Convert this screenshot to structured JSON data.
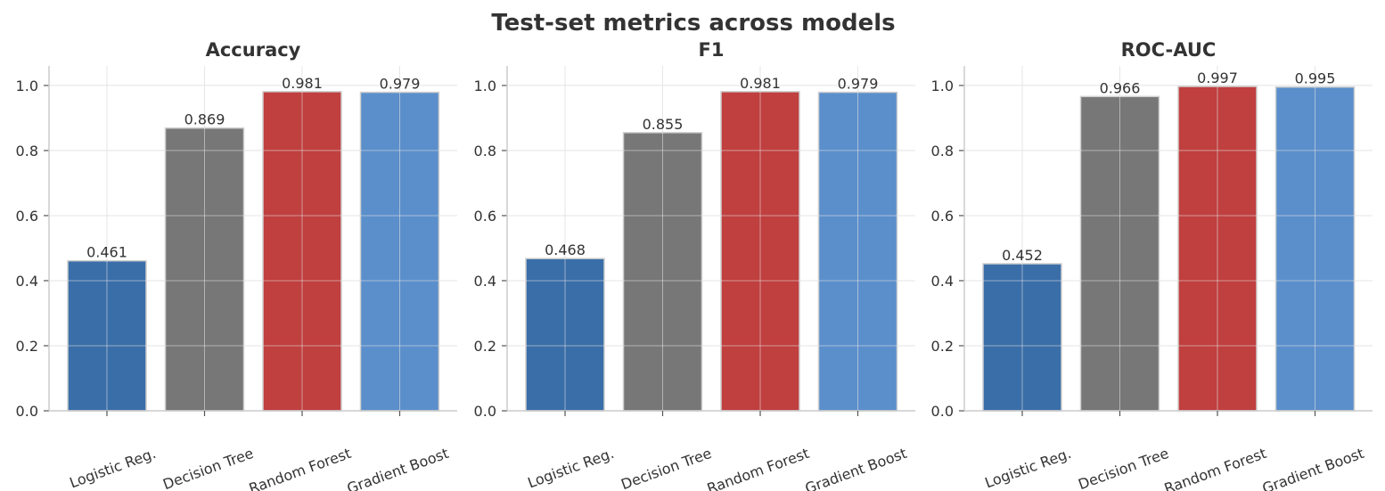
{
  "suptitle": "Test-set metrics across models",
  "chart_data": [
    {
      "type": "bar",
      "title": "Accuracy",
      "categories": [
        "Logistic Reg.",
        "Decision Tree",
        "Random Forest",
        "Gradient Boost"
      ],
      "values": [
        0.461,
        0.869,
        0.981,
        0.979
      ],
      "value_labels": [
        "0.461",
        "0.869",
        "0.981",
        "0.979"
      ],
      "colors": [
        "#3a6ea8",
        "#777777",
        "#c03f3f",
        "#5b8fcb"
      ],
      "ylim": [
        0,
        1.06
      ],
      "yticks": [
        "0.0",
        "0.2",
        "0.4",
        "0.6",
        "0.8",
        "1.0"
      ],
      "grid": true
    },
    {
      "type": "bar",
      "title": "F1",
      "categories": [
        "Logistic Reg.",
        "Decision Tree",
        "Random Forest",
        "Gradient Boost"
      ],
      "values": [
        0.468,
        0.855,
        0.981,
        0.979
      ],
      "value_labels": [
        "0.468",
        "0.855",
        "0.981",
        "0.979"
      ],
      "colors": [
        "#3a6ea8",
        "#777777",
        "#c03f3f",
        "#5b8fcb"
      ],
      "ylim": [
        0,
        1.06
      ],
      "yticks": [
        "0.0",
        "0.2",
        "0.4",
        "0.6",
        "0.8",
        "1.0"
      ],
      "grid": true
    },
    {
      "type": "bar",
      "title": "ROC-AUC",
      "categories": [
        "Logistic Reg.",
        "Decision Tree",
        "Random Forest",
        "Gradient Boost"
      ],
      "values": [
        0.452,
        0.966,
        0.997,
        0.995
      ],
      "value_labels": [
        "0.452",
        "0.966",
        "0.997",
        "0.995"
      ],
      "colors": [
        "#3a6ea8",
        "#777777",
        "#c03f3f",
        "#5b8fcb"
      ],
      "ylim": [
        0,
        1.06
      ],
      "yticks": [
        "0.0",
        "0.2",
        "0.4",
        "0.6",
        "0.8",
        "1.0"
      ],
      "grid": true
    }
  ]
}
